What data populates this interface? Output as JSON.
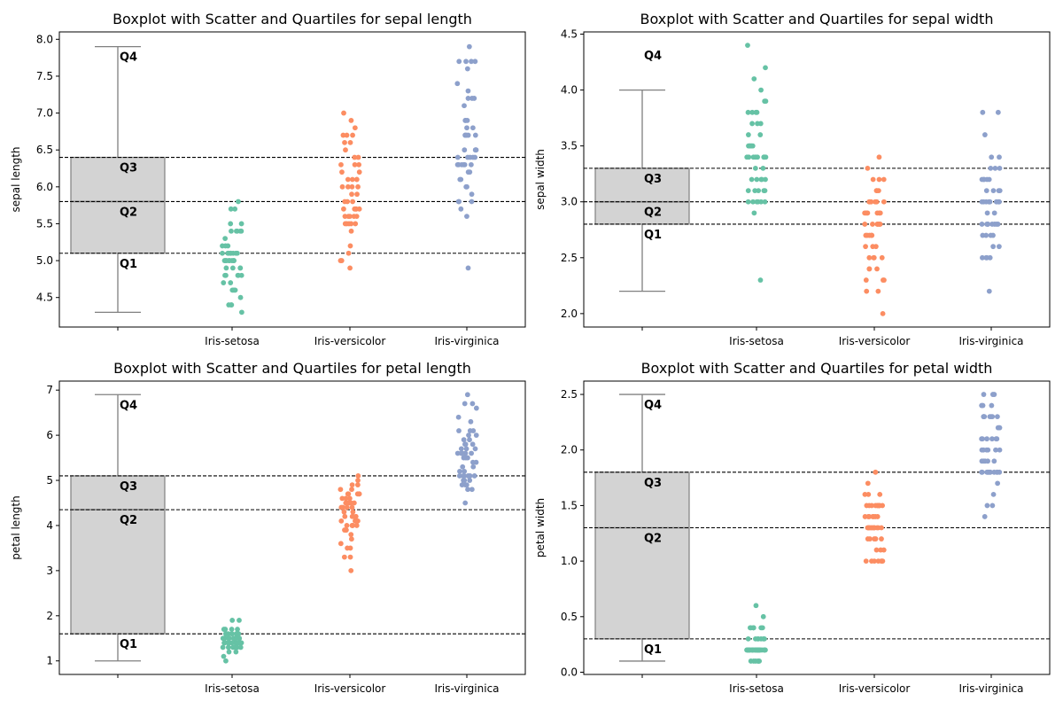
{
  "colors": {
    "Iris-setosa": "#66c2a5",
    "Iris-versicolor": "#fc8d62",
    "Iris-virginica": "#8da0cb",
    "box_fill": "#d3d3d3",
    "box_edge": "#808080"
  },
  "chart_data": [
    {
      "type": "box+scatter",
      "title": "Boxplot with Scatter and Quartiles for sepal length",
      "xlabel": "",
      "ylabel": "sepal length",
      "categories": [
        "",
        "Iris-setosa",
        "Iris-versicolor",
        "Iris-virginica"
      ],
      "ylim": [
        4.1,
        8.1
      ],
      "yticks": [
        4.5,
        5.0,
        5.5,
        6.0,
        6.5,
        7.0,
        7.5,
        8.0
      ],
      "ytick_labels": [
        "4.5",
        "5.0",
        "5.5",
        "6.0",
        "6.5",
        "7.0",
        "7.5",
        "8.0"
      ],
      "box": {
        "min": 4.3,
        "q1": 5.1,
        "median": 5.8,
        "q3": 6.4,
        "max": 7.9
      },
      "quartile_lines": [
        5.1,
        5.8,
        6.4
      ],
      "quartile_labels": [
        {
          "text": "Q1",
          "y": 5.1
        },
        {
          "text": "Q2",
          "y": 5.8
        },
        {
          "text": "Q3",
          "y": 6.4
        },
        {
          "text": "Q4",
          "y": 7.9
        }
      ],
      "series": [
        {
          "category": "Iris-setosa",
          "values": [
            5.1,
            4.9,
            4.7,
            4.6,
            5.0,
            5.4,
            4.6,
            5.0,
            4.4,
            4.9,
            5.4,
            4.8,
            4.8,
            4.3,
            5.8,
            5.7,
            5.4,
            5.1,
            5.7,
            5.1,
            5.4,
            5.1,
            4.6,
            5.1,
            4.8,
            5.0,
            5.0,
            5.2,
            5.2,
            4.7,
            4.8,
            5.4,
            5.2,
            5.5,
            4.9,
            5.0,
            5.5,
            4.9,
            4.4,
            5.1,
            5.0,
            4.5,
            4.4,
            5.0,
            5.1,
            4.8,
            5.1,
            4.6,
            5.3,
            5.0
          ]
        },
        {
          "category": "Iris-versicolor",
          "values": [
            7.0,
            6.4,
            6.9,
            5.5,
            6.5,
            5.7,
            6.3,
            4.9,
            6.6,
            5.2,
            5.0,
            5.9,
            6.0,
            6.1,
            5.6,
            6.7,
            5.6,
            5.8,
            6.2,
            5.6,
            5.9,
            6.1,
            6.3,
            6.1,
            6.4,
            6.6,
            6.8,
            6.7,
            6.0,
            5.7,
            5.5,
            5.5,
            5.8,
            6.0,
            5.4,
            6.0,
            6.7,
            6.3,
            5.6,
            5.5,
            5.5,
            6.1,
            5.8,
            5.0,
            5.6,
            5.7,
            5.7,
            6.2,
            5.1,
            5.7
          ]
        },
        {
          "category": "Iris-virginica",
          "values": [
            6.3,
            5.8,
            7.1,
            6.3,
            6.5,
            7.6,
            4.9,
            7.3,
            6.7,
            7.2,
            6.5,
            6.4,
            6.8,
            5.7,
            5.8,
            6.4,
            6.5,
            7.7,
            7.7,
            6.0,
            6.9,
            5.6,
            7.7,
            6.3,
            6.7,
            7.2,
            6.2,
            6.1,
            6.4,
            7.2,
            7.4,
            7.9,
            6.4,
            6.3,
            6.1,
            7.7,
            6.3,
            6.4,
            6.0,
            6.9,
            6.7,
            6.9,
            5.8,
            6.8,
            6.7,
            6.7,
            6.3,
            6.5,
            6.2,
            5.9
          ]
        }
      ]
    },
    {
      "type": "box+scatter",
      "title": "Boxplot with Scatter and Quartiles for sepal width",
      "xlabel": "",
      "ylabel": "sepal width",
      "categories": [
        "",
        "Iris-setosa",
        "Iris-versicolor",
        "Iris-virginica"
      ],
      "ylim": [
        1.88,
        4.52
      ],
      "yticks": [
        2.0,
        2.5,
        3.0,
        3.5,
        4.0,
        4.5
      ],
      "ytick_labels": [
        "2.0",
        "2.5",
        "3.0",
        "3.5",
        "4.0",
        "4.5"
      ],
      "box": {
        "min": 2.2,
        "q1": 2.8,
        "median": 3.0,
        "q3": 3.3,
        "max": 4.0
      },
      "quartile_lines": [
        2.8,
        3.0,
        3.3
      ],
      "quartile_labels": [
        {
          "text": "Q1",
          "y": 2.8
        },
        {
          "text": "Q2",
          "y": 3.0
        },
        {
          "text": "Q3",
          "y": 3.3
        },
        {
          "text": "Q4",
          "y": 4.4
        }
      ],
      "series": [
        {
          "category": "Iris-setosa",
          "values": [
            3.5,
            3.0,
            3.2,
            3.1,
            3.6,
            3.9,
            3.4,
            3.4,
            2.9,
            3.1,
            3.7,
            3.4,
            3.0,
            3.0,
            4.0,
            4.4,
            3.9,
            3.5,
            3.8,
            3.8,
            3.4,
            3.7,
            3.6,
            3.3,
            3.4,
            3.0,
            3.4,
            3.5,
            3.4,
            3.2,
            3.1,
            3.4,
            4.1,
            4.2,
            3.1,
            3.2,
            3.5,
            3.1,
            3.0,
            3.4,
            3.5,
            2.3,
            3.2,
            3.5,
            3.8,
            3.0,
            3.8,
            3.2,
            3.7,
            3.3
          ]
        },
        {
          "category": "Iris-versicolor",
          "values": [
            3.2,
            3.2,
            3.1,
            2.3,
            2.8,
            2.8,
            3.3,
            2.4,
            2.9,
            2.7,
            2.0,
            3.0,
            2.2,
            2.9,
            2.9,
            3.1,
            3.0,
            2.7,
            2.2,
            2.5,
            3.2,
            2.8,
            2.5,
            2.8,
            2.9,
            3.0,
            2.8,
            3.0,
            2.9,
            2.6,
            2.4,
            2.4,
            2.7,
            2.7,
            3.0,
            3.4,
            3.1,
            2.3,
            3.0,
            2.5,
            2.6,
            3.0,
            2.6,
            2.3,
            2.7,
            3.0,
            2.9,
            2.9,
            2.5,
            2.8
          ]
        },
        {
          "category": "Iris-virginica",
          "values": [
            3.3,
            2.7,
            3.0,
            2.9,
            3.0,
            3.0,
            2.5,
            2.9,
            2.5,
            3.6,
            3.2,
            2.7,
            3.0,
            2.5,
            2.8,
            3.2,
            3.0,
            3.8,
            2.6,
            2.2,
            3.2,
            2.8,
            2.8,
            2.7,
            3.3,
            3.2,
            2.8,
            3.0,
            2.8,
            3.0,
            2.8,
            3.8,
            2.8,
            2.8,
            2.6,
            3.0,
            3.4,
            3.1,
            3.0,
            3.1,
            3.1,
            3.1,
            2.7,
            3.2,
            3.3,
            3.0,
            2.5,
            3.0,
            3.4,
            3.0
          ]
        }
      ]
    },
    {
      "type": "box+scatter",
      "title": "Boxplot with Scatter and Quartiles for petal length",
      "xlabel": "",
      "ylabel": "petal length",
      "categories": [
        "",
        "Iris-setosa",
        "Iris-versicolor",
        "Iris-virginica"
      ],
      "ylim": [
        0.7,
        7.2
      ],
      "yticks": [
        1,
        2,
        3,
        4,
        5,
        6,
        7
      ],
      "ytick_labels": [
        "1",
        "2",
        "3",
        "4",
        "5",
        "6",
        "7"
      ],
      "box": {
        "min": 1.0,
        "q1": 1.6,
        "median": 4.35,
        "q3": 5.1,
        "max": 6.9
      },
      "quartile_lines": [
        1.6,
        4.35,
        5.1
      ],
      "quartile_labels": [
        {
          "text": "Q1",
          "y": 1.6
        },
        {
          "text": "Q2",
          "y": 4.35
        },
        {
          "text": "Q3",
          "y": 5.1
        },
        {
          "text": "Q4",
          "y": 6.9
        }
      ],
      "series": [
        {
          "category": "Iris-setosa",
          "values": [
            1.4,
            1.4,
            1.3,
            1.5,
            1.4,
            1.7,
            1.4,
            1.5,
            1.4,
            1.5,
            1.5,
            1.6,
            1.4,
            1.1,
            1.2,
            1.5,
            1.3,
            1.4,
            1.7,
            1.5,
            1.7,
            1.5,
            1.0,
            1.7,
            1.9,
            1.6,
            1.6,
            1.5,
            1.4,
            1.6,
            1.6,
            1.5,
            1.5,
            1.4,
            1.5,
            1.2,
            1.3,
            1.5,
            1.3,
            1.5,
            1.3,
            1.3,
            1.3,
            1.6,
            1.9,
            1.4,
            1.6,
            1.4,
            1.5,
            1.4
          ]
        },
        {
          "category": "Iris-versicolor",
          "values": [
            4.7,
            4.5,
            4.9,
            4.0,
            4.6,
            4.5,
            4.7,
            3.3,
            4.6,
            3.9,
            3.5,
            4.2,
            4.0,
            4.7,
            3.6,
            4.4,
            4.5,
            4.1,
            4.5,
            3.9,
            4.8,
            4.0,
            4.9,
            4.7,
            4.3,
            4.4,
            4.8,
            5.0,
            4.5,
            3.5,
            3.8,
            3.7,
            3.9,
            5.1,
            4.5,
            4.5,
            4.7,
            4.4,
            4.1,
            4.0,
            4.4,
            4.6,
            4.0,
            3.3,
            4.2,
            4.2,
            4.2,
            4.3,
            3.0,
            4.1
          ]
        },
        {
          "category": "Iris-virginica",
          "values": [
            6.0,
            5.1,
            5.9,
            5.6,
            5.8,
            6.6,
            4.5,
            6.3,
            5.8,
            6.1,
            5.1,
            5.3,
            5.5,
            5.0,
            5.1,
            5.3,
            5.5,
            6.7,
            6.9,
            5.0,
            5.7,
            4.9,
            6.7,
            4.9,
            5.7,
            6.0,
            4.8,
            4.9,
            5.6,
            5.8,
            6.1,
            6.4,
            5.6,
            5.1,
            5.6,
            6.1,
            5.6,
            5.5,
            4.8,
            5.4,
            5.6,
            5.1,
            5.1,
            5.9,
            5.7,
            5.2,
            5.0,
            5.2,
            5.4,
            5.1
          ]
        }
      ]
    },
    {
      "type": "box+scatter",
      "title": "Boxplot with Scatter and Quartiles for petal width",
      "xlabel": "",
      "ylabel": "petal width",
      "categories": [
        "",
        "Iris-setosa",
        "Iris-versicolor",
        "Iris-virginica"
      ],
      "ylim": [
        -0.02,
        2.62
      ],
      "yticks": [
        0.0,
        0.5,
        1.0,
        1.5,
        2.0,
        2.5
      ],
      "ytick_labels": [
        "0.0",
        "0.5",
        "1.0",
        "1.5",
        "2.0",
        "2.5"
      ],
      "box": {
        "min": 0.1,
        "q1": 0.3,
        "median": 1.3,
        "q3": 1.8,
        "max": 2.5
      },
      "quartile_lines": [
        0.3,
        1.3,
        1.8
      ],
      "quartile_labels": [
        {
          "text": "Q1",
          "y": 0.3
        },
        {
          "text": "Q2",
          "y": 1.3
        },
        {
          "text": "Q3",
          "y": 1.8
        },
        {
          "text": "Q4",
          "y": 2.5
        }
      ],
      "series": [
        {
          "category": "Iris-setosa",
          "values": [
            0.2,
            0.2,
            0.2,
            0.2,
            0.2,
            0.4,
            0.3,
            0.2,
            0.2,
            0.1,
            0.2,
            0.2,
            0.1,
            0.1,
            0.2,
            0.4,
            0.4,
            0.3,
            0.3,
            0.3,
            0.2,
            0.4,
            0.2,
            0.5,
            0.2,
            0.2,
            0.4,
            0.2,
            0.2,
            0.2,
            0.2,
            0.4,
            0.1,
            0.2,
            0.1,
            0.2,
            0.2,
            0.1,
            0.2,
            0.2,
            0.3,
            0.3,
            0.2,
            0.6,
            0.4,
            0.3,
            0.2,
            0.2,
            0.2,
            0.2
          ]
        },
        {
          "category": "Iris-versicolor",
          "values": [
            1.4,
            1.5,
            1.5,
            1.3,
            1.5,
            1.3,
            1.6,
            1.0,
            1.3,
            1.4,
            1.0,
            1.5,
            1.0,
            1.4,
            1.3,
            1.4,
            1.5,
            1.0,
            1.5,
            1.1,
            1.8,
            1.3,
            1.5,
            1.2,
            1.3,
            1.4,
            1.4,
            1.7,
            1.5,
            1.0,
            1.1,
            1.0,
            1.2,
            1.6,
            1.5,
            1.6,
            1.5,
            1.3,
            1.3,
            1.3,
            1.2,
            1.4,
            1.2,
            1.0,
            1.3,
            1.2,
            1.3,
            1.3,
            1.1,
            1.3
          ]
        },
        {
          "category": "Iris-virginica",
          "values": [
            2.5,
            1.9,
            2.1,
            1.8,
            2.2,
            2.1,
            1.7,
            1.8,
            1.8,
            2.5,
            2.0,
            1.9,
            2.1,
            2.0,
            2.4,
            2.3,
            1.8,
            2.2,
            2.3,
            1.5,
            2.3,
            2.0,
            2.0,
            1.8,
            2.1,
            1.8,
            1.8,
            1.8,
            2.1,
            1.6,
            1.9,
            2.0,
            2.2,
            1.5,
            1.4,
            2.3,
            2.4,
            1.8,
            1.8,
            2.1,
            2.4,
            2.3,
            1.9,
            2.3,
            2.5,
            2.3,
            1.9,
            2.0,
            2.3,
            1.8
          ]
        }
      ]
    }
  ]
}
